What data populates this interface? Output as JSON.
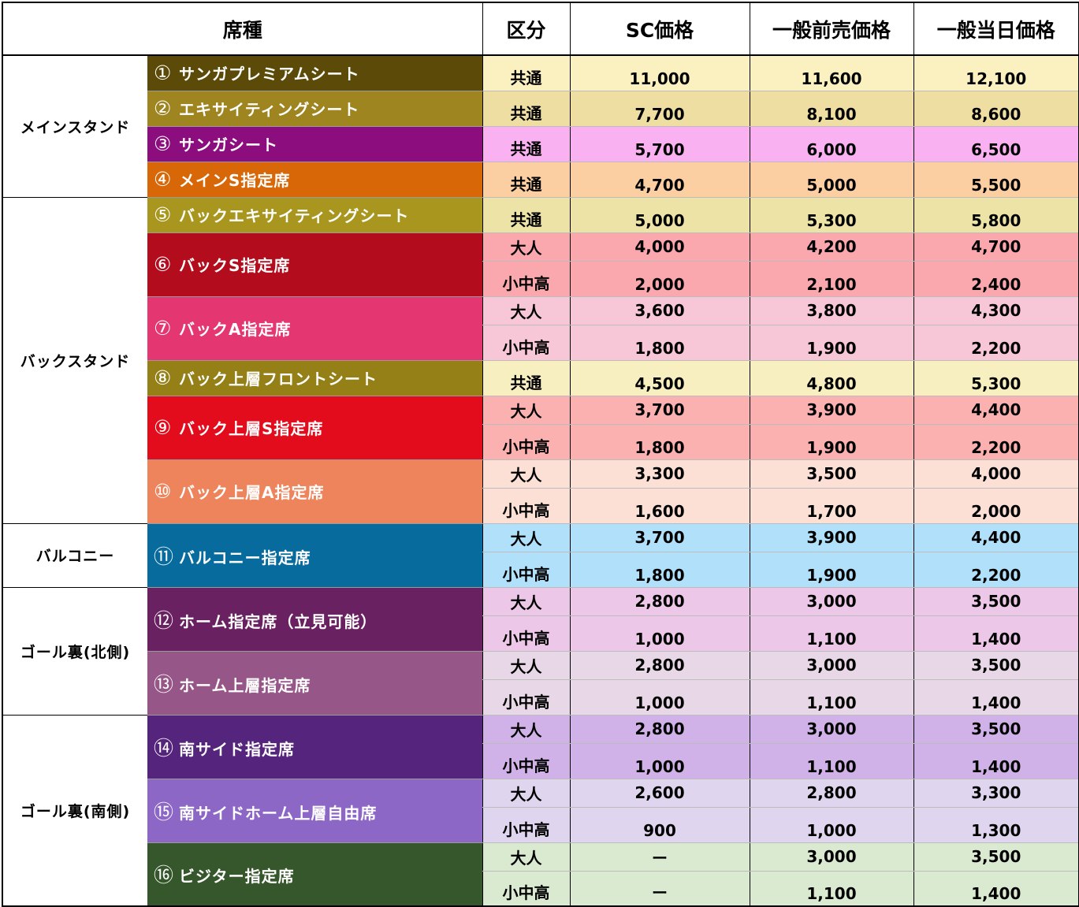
{
  "header": {
    "seat_type": "席種",
    "category": "区分",
    "sc_price": "SC価格",
    "advance_price": "一般前売価格",
    "sameday_price": "一般当日価格"
  },
  "colors": {
    "row_common_1": "#fbf0bf",
    "seat_1": "#5b4a08",
    "seat_2": "#9e8520",
    "seat_3": "#8b0d7e",
    "seat_4": "#d86707",
    "seat_5": "#a8961e",
    "seat_6": "#b30c1d",
    "seat_7": "#e43670",
    "seat_8": "#948016",
    "seat_9": "#e20c1c",
    "seat_10": "#ee845c",
    "seat_11": "#086b9e",
    "seat_12": "#6a2161",
    "seat_13": "#965688",
    "seat_14": "#55247c",
    "seat_15": "#8d67c5",
    "seat_16": "#36562b"
  },
  "stands": [
    {
      "name": "メインスタンド",
      "seats": [
        {
          "num": "①",
          "name": "サンガプレミアムシート",
          "color": "#5b4a08",
          "bg": "#fbf0bf",
          "rows": [
            {
              "div": "共通",
              "sc": "11,000",
              "adv": "11,600",
              "day": "12,100"
            }
          ]
        },
        {
          "num": "②",
          "name": "エキサイティングシート",
          "color": "#9e8520",
          "bg": "#efdea2",
          "rows": [
            {
              "div": "共通",
              "sc": "7,700",
              "adv": "8,100",
              "day": "8,600"
            }
          ]
        },
        {
          "num": "③",
          "name": "サンガシート",
          "color": "#8b0d7e",
          "bg": "#f9b1f1",
          "rows": [
            {
              "div": "共通",
              "sc": "5,700",
              "adv": "6,000",
              "day": "6,500"
            }
          ]
        },
        {
          "num": "④",
          "name": "メインS指定席",
          "color": "#d86707",
          "bg": "#fccfa2",
          "rows": [
            {
              "div": "共通",
              "sc": "4,700",
              "adv": "5,000",
              "day": "5,500"
            }
          ]
        }
      ]
    },
    {
      "name": "バックスタンド",
      "seats": [
        {
          "num": "⑤",
          "name": "バックエキサイティングシート",
          "color": "#a8961e",
          "bg": "#eee3a6",
          "rows": [
            {
              "div": "共通",
              "sc": "5,000",
              "adv": "5,300",
              "day": "5,800"
            }
          ]
        },
        {
          "num": "⑥",
          "name": "バックS指定席",
          "color": "#b30c1d",
          "bg": "#fba7ae",
          "rows": [
            {
              "div": "大人",
              "sc": "4,000",
              "adv": "4,200",
              "day": "4,700"
            },
            {
              "div": "小中高",
              "sc": "2,000",
              "adv": "2,100",
              "day": "2,400"
            }
          ]
        },
        {
          "num": "⑦",
          "name": "バックA指定席",
          "color": "#e43670",
          "bg": "#f7c6d7",
          "rows": [
            {
              "div": "大人",
              "sc": "3,600",
              "adv": "3,800",
              "day": "4,300"
            },
            {
              "div": "小中高",
              "sc": "1,800",
              "adv": "1,900",
              "day": "2,200"
            }
          ]
        },
        {
          "num": "⑧",
          "name": "バック上層フロントシート",
          "color": "#948016",
          "bg": "#f7efbf",
          "rows": [
            {
              "div": "共通",
              "sc": "4,500",
              "adv": "4,800",
              "day": "5,300"
            }
          ]
        },
        {
          "num": "⑨",
          "name": "バック上層S指定席",
          "color": "#e20c1c",
          "bg": "#fcb1b1",
          "rows": [
            {
              "div": "大人",
              "sc": "3,700",
              "adv": "3,900",
              "day": "4,400"
            },
            {
              "div": "小中高",
              "sc": "1,800",
              "adv": "1,900",
              "day": "2,200"
            }
          ]
        },
        {
          "num": "⑩",
          "name": "バック上層A指定席",
          "color": "#ee845c",
          "bg": "#fce0d6",
          "rows": [
            {
              "div": "大人",
              "sc": "3,300",
              "adv": "3,500",
              "day": "4,000"
            },
            {
              "div": "小中高",
              "sc": "1,600",
              "adv": "1,700",
              "day": "2,000"
            }
          ]
        }
      ]
    },
    {
      "name": "バルコニー",
      "seats": [
        {
          "num": "⑪",
          "name": "バルコニー指定席",
          "color": "#086b9e",
          "bg": "#b0e0fa",
          "rows": [
            {
              "div": "大人",
              "sc": "3,700",
              "adv": "3,900",
              "day": "4,400"
            },
            {
              "div": "小中高",
              "sc": "1,800",
              "adv": "1,900",
              "day": "2,200"
            }
          ]
        }
      ]
    },
    {
      "name": "ゴール裏(北側)",
      "seats": [
        {
          "num": "⑫",
          "name": "ホーム指定席（立見可能）",
          "color": "#6a2161",
          "bg": "#ecc7e8",
          "rows": [
            {
              "div": "大人",
              "sc": "2,800",
              "adv": "3,000",
              "day": "3,500"
            },
            {
              "div": "小中高",
              "sc": "1,000",
              "adv": "1,100",
              "day": "1,400"
            }
          ]
        },
        {
          "num": "⑬",
          "name": "ホーム上層指定席",
          "color": "#965688",
          "bg": "#e8d7e6",
          "rows": [
            {
              "div": "大人",
              "sc": "2,800",
              "adv": "3,000",
              "day": "3,500"
            },
            {
              "div": "小中高",
              "sc": "1,000",
              "adv": "1,100",
              "day": "1,400"
            }
          ]
        }
      ]
    },
    {
      "name": "ゴール裏(南側)",
      "seats": [
        {
          "num": "⑭",
          "name": "南サイド指定席",
          "color": "#55247c",
          "bg": "#d1b2e8",
          "rows": [
            {
              "div": "大人",
              "sc": "2,800",
              "adv": "3,000",
              "day": "3,500"
            },
            {
              "div": "小中高",
              "sc": "1,000",
              "adv": "1,100",
              "day": "1,400"
            }
          ]
        },
        {
          "num": "⑮",
          "name": "南サイドホーム上層自由席",
          "color": "#8d67c5",
          "bg": "#e0d5ee",
          "rows": [
            {
              "div": "大人",
              "sc": "2,600",
              "adv": "2,800",
              "day": "3,300"
            },
            {
              "div": "小中高",
              "sc": "900",
              "adv": "1,000",
              "day": "1,300"
            }
          ]
        },
        {
          "num": "⑯",
          "name": "ビジター指定席",
          "color": "#36562b",
          "bg": "#daead0",
          "rows": [
            {
              "div": "大人",
              "sc": "ー",
              "adv": "3,000",
              "day": "3,500"
            },
            {
              "div": "小中高",
              "sc": "ー",
              "adv": "1,100",
              "day": "1,400"
            }
          ]
        }
      ]
    }
  ]
}
